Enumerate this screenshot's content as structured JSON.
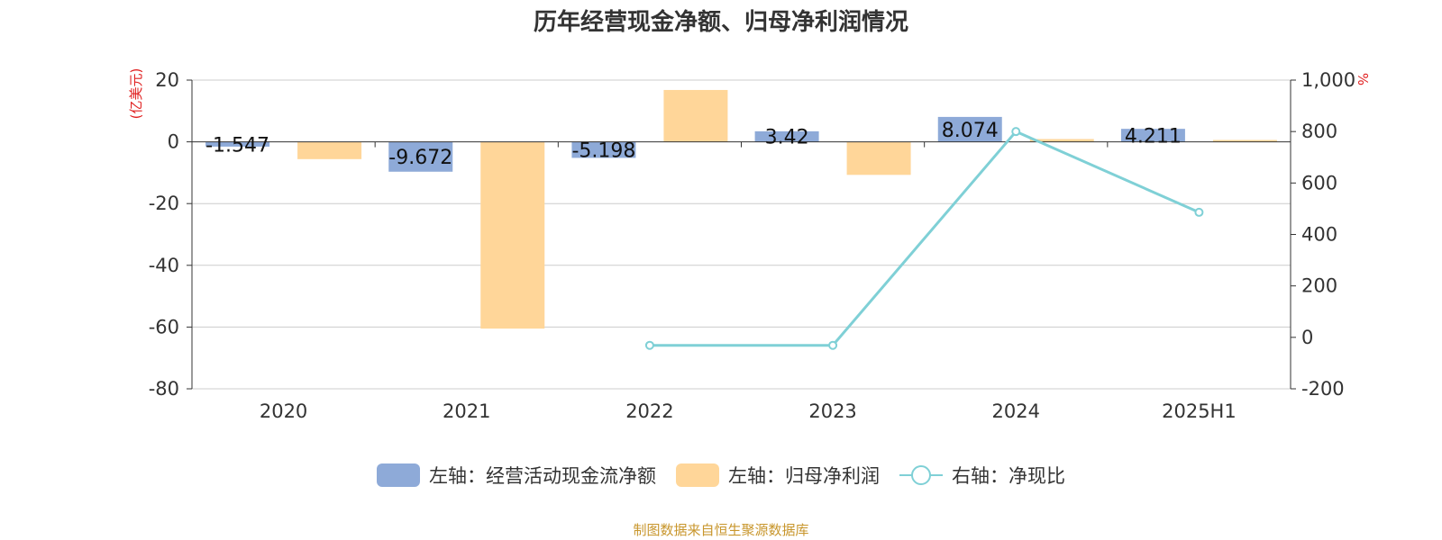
{
  "title": "历年经营现金净额、归母净利润情况",
  "source": "制图数据来自恒生聚源数据库",
  "chart_data": {
    "type": "bar",
    "categories": [
      "2020",
      "2021",
      "2022",
      "2023",
      "2024",
      "2025H1"
    ],
    "series": [
      {
        "name": "左轴：经营活动现金流净额",
        "axis": "left",
        "type": "bar",
        "values": [
          -1.547,
          -9.672,
          -5.198,
          3.42,
          8.074,
          4.211
        ],
        "labels": [
          "-1.547",
          "-9.672",
          "-5.198",
          "3.42",
          "8.074",
          "4.211"
        ],
        "color": "#8eaad8"
      },
      {
        "name": "左轴：归母净利润",
        "axis": "left",
        "type": "bar",
        "values": [
          -5.6,
          -60.5,
          16.8,
          -10.7,
          0.9,
          0.6
        ],
        "color": "#ffd699"
      },
      {
        "name": "右轴：净现比",
        "axis": "right",
        "type": "line",
        "values": [
          null,
          null,
          -31,
          -31,
          800,
          486
        ],
        "color": "#7fd0d6"
      }
    ],
    "left_axis": {
      "unit": "(亿美元)",
      "min": -80,
      "max": 20,
      "ticks": [
        20,
        0,
        -20,
        -40,
        -60,
        -80
      ]
    },
    "right_axis": {
      "unit": "%",
      "min": -200,
      "max": 1000,
      "ticks": [
        "1,000",
        "800",
        "600",
        "400",
        "200",
        "0",
        "-200"
      ]
    },
    "grid": true,
    "legend_position": "bottom"
  }
}
